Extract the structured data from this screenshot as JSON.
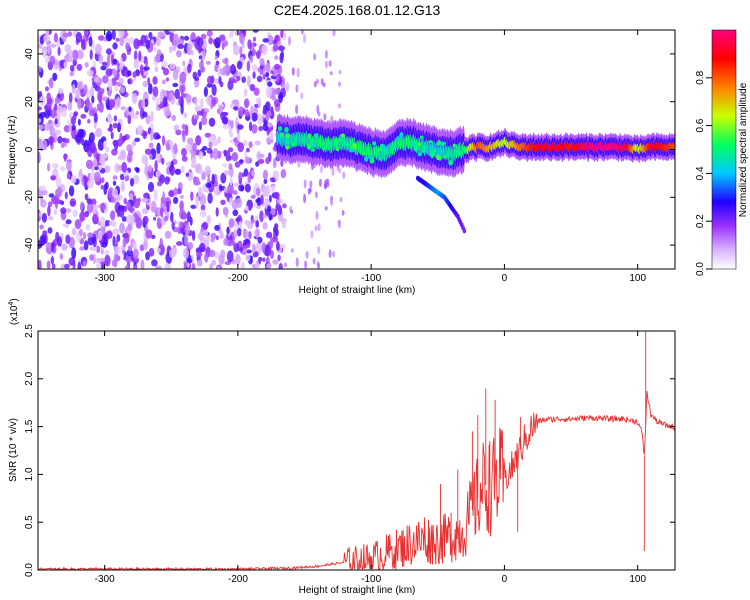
{
  "title": "C2E4.2025.168.01.12.G13",
  "chart_data": [
    {
      "type": "heatmap",
      "xlabel": "Height of straight line (km)",
      "ylabel": "Frequency (Hz)",
      "xlim": [
        -350,
        128
      ],
      "ylim": [
        -50,
        50
      ],
      "xticks": [
        -300,
        -200,
        -100,
        0,
        100
      ],
      "yticks": [
        -40,
        -20,
        0,
        20,
        40
      ],
      "colorbar": {
        "label": "Normalized spectral amplitude",
        "range": [
          0,
          1
        ],
        "ticks": [
          "0.0",
          "0.2",
          "0.4",
          "0.6",
          "0.8"
        ],
        "tick_values": [
          0.0,
          0.2,
          0.4,
          0.6,
          0.8
        ],
        "colormap": [
          "#ffffff",
          "#9b30ff",
          "#2000ff",
          "#00c8ff",
          "#00ff60",
          "#c8ff00",
          "#ff8000",
          "#ff0000",
          "#ff007f"
        ]
      },
      "ridge": {
        "x": [
          -170,
          -160,
          -150,
          -140,
          -130,
          -120,
          -110,
          -100,
          -90,
          -80,
          -70,
          -60,
          -50,
          -40,
          -30,
          -20,
          -10,
          0,
          10,
          20,
          30,
          40,
          50,
          60,
          70,
          80,
          90,
          100,
          110,
          120,
          128
        ],
        "y": [
          5,
          4,
          4,
          3,
          2,
          3,
          1,
          -1,
          -2,
          2,
          3,
          1,
          -1,
          -2,
          0,
          1,
          1,
          3,
          1,
          1,
          1,
          1,
          1,
          1,
          1,
          1,
          1,
          0,
          1,
          1,
          1
        ],
        "amplitude": [
          0.4,
          0.45,
          0.45,
          0.5,
          0.5,
          0.45,
          0.5,
          0.5,
          0.45,
          0.5,
          0.5,
          0.45,
          0.4,
          0.45,
          0.5,
          0.8,
          0.7,
          0.6,
          0.75,
          0.85,
          0.9,
          0.9,
          0.85,
          0.95,
          1.0,
          1.0,
          0.95,
          0.6,
          0.9,
          0.85,
          0.8
        ]
      },
      "branch": {
        "x": [
          -65,
          -60,
          -55,
          -50,
          -45,
          -40,
          -35,
          -30
        ],
        "y": [
          -12,
          -14,
          -16,
          -18,
          -20,
          -24,
          -28,
          -34
        ],
        "amplitude": [
          0.25,
          0.25,
          0.3,
          0.35,
          0.3,
          0.25,
          0.2,
          0.15
        ]
      },
      "noise_region": {
        "xlim": [
          -350,
          -165
        ],
        "amplitude_max": 0.2
      }
    },
    {
      "type": "line",
      "xlabel": "Height of straight line (km)",
      "ylabel": "SNR (10 * v/v)",
      "y_multiplier": "(x10",
      "y_multiplier_exp": "4",
      "y_multiplier_close": ")",
      "xlim": [
        -350,
        128
      ],
      "ylim": [
        0,
        2.5
      ],
      "xticks": [
        -300,
        -200,
        -100,
        0,
        100
      ],
      "yticks": [
        "0.0",
        "0.5",
        "1.0",
        "1.5",
        "2.0",
        "2.5"
      ],
      "series": [
        {
          "color": "#e83030",
          "x": [
            -350,
            -300,
            -250,
            -200,
            -160,
            -140,
            -120,
            -100,
            -90,
            -80,
            -70,
            -60,
            -50,
            -40,
            -30,
            -25,
            -20,
            -15,
            -10,
            -5,
            0,
            5,
            10,
            15,
            20,
            25,
            30,
            40,
            50,
            60,
            70,
            80,
            90,
            100,
            103,
            105,
            107,
            110,
            115,
            120,
            128
          ],
          "y": [
            0.01,
            0.01,
            0.01,
            0.01,
            0.02,
            0.04,
            0.08,
            0.12,
            0.17,
            0.22,
            0.28,
            0.32,
            0.3,
            0.35,
            0.42,
            0.6,
            0.75,
            0.9,
            0.85,
            0.95,
            0.95,
            1.05,
            1.2,
            1.35,
            1.48,
            1.55,
            1.57,
            1.58,
            1.58,
            1.59,
            1.59,
            1.58,
            1.58,
            1.55,
            1.45,
            1.2,
            1.85,
            1.62,
            1.55,
            1.52,
            1.49
          ]
        }
      ],
      "spikes": [
        {
          "x": -60,
          "y": 0.55
        },
        {
          "x": -48,
          "y": 0.9
        },
        {
          "x": -40,
          "y": 0.6
        },
        {
          "x": -35,
          "y": 1.05
        },
        {
          "x": -24,
          "y": 1.45
        },
        {
          "x": -20,
          "y": 1.62
        },
        {
          "x": -14,
          "y": 1.9
        },
        {
          "x": -11,
          "y": 1.35
        },
        {
          "x": -7,
          "y": 1.78
        },
        {
          "x": -3,
          "y": 1.45
        },
        {
          "x": 10,
          "y": 0.4
        },
        {
          "x": 12,
          "y": 1.6
        },
        {
          "x": 105,
          "y": 0.2
        },
        {
          "x": 106,
          "y": 2.5
        }
      ]
    }
  ]
}
